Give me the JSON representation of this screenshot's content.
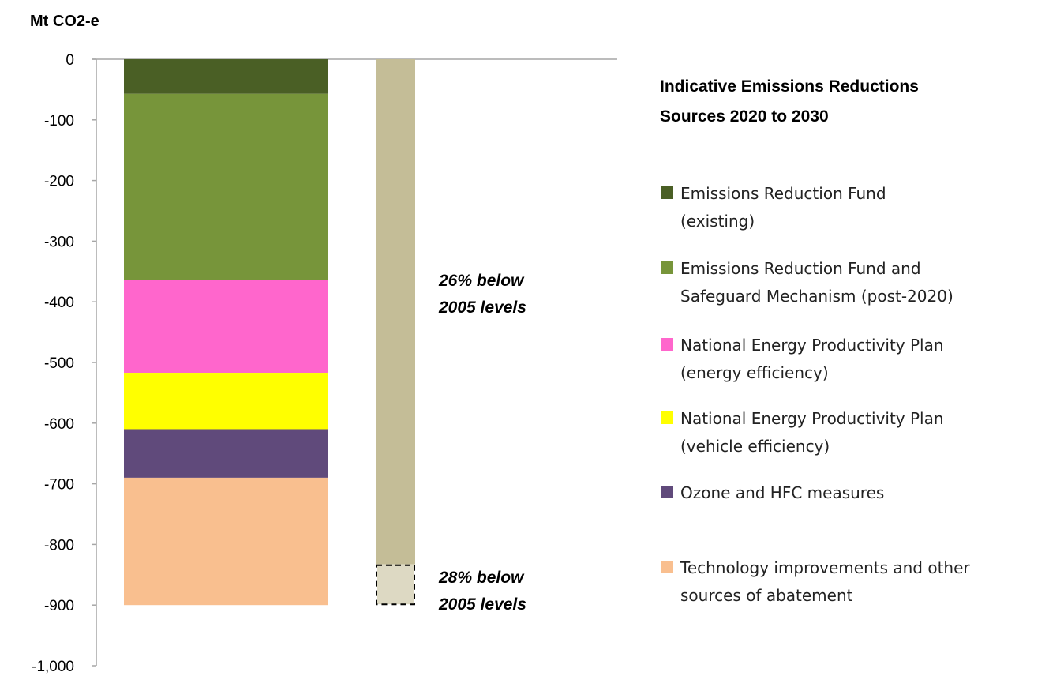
{
  "chart_data": {
    "type": "bar",
    "stacked": true,
    "ylabel": "Mt CO2-e",
    "ylim": [
      -1000,
      0
    ],
    "y_tick_labels": [
      "0",
      "-100",
      "-200",
      "-300",
      "-400",
      "-500",
      "-600",
      "-700",
      "-800",
      "-900",
      "-1,000"
    ],
    "y_ticks": [
      0,
      -100,
      -200,
      -300,
      -400,
      -500,
      -600,
      -700,
      -800,
      -900,
      -1000
    ],
    "grid": false,
    "legend_placement": "right",
    "legend_title": "Indicative Emissions Reductions Sources 2020 to 2030",
    "legend_title_lines": [
      "Indicative Emissions Reductions",
      "Sources 2020 to 2030"
    ],
    "series": [
      {
        "name": "Emissions Reduction Fund (existing)",
        "name_lines": [
          "Emissions Reduction Fund",
          "(existing)"
        ],
        "value": -57,
        "color": "#4a5f25"
      },
      {
        "name": "Emissions Reduction Fund and Safeguard Mechanism (post-2020)",
        "name_lines": [
          "Emissions Reduction Fund and",
          "Safeguard Mechanism (post-2020)"
        ],
        "value": -307,
        "color": "#77953a"
      },
      {
        "name": "National Energy Productivity Plan (energy efficiency)",
        "name_lines": [
          "National Energy Productivity Plan",
          "(energy efficiency)"
        ],
        "value": -153,
        "color": "#ff66cc"
      },
      {
        "name": "National Energy Productivity Plan (vehicle efficiency)",
        "name_lines": [
          "National Energy Productivity Plan",
          "(vehicle efficiency)"
        ],
        "value": -93,
        "color": "#ffff00"
      },
      {
        "name": "Ozone and HFC measures",
        "name_lines": [
          "Ozone and HFC measures"
        ],
        "value": -80,
        "color": "#604a7b"
      },
      {
        "name": "Technology improvements and other sources of abatement",
        "name_lines": [
          "Technology improvements and other",
          "sources of abatement"
        ],
        "value": -210,
        "color": "#f9bf8f"
      }
    ],
    "target_bar": {
      "value": -833,
      "color": "#c4bd97",
      "label": "26% below 2005 levels",
      "label_lines": [
        "26% below",
        "2005 levels"
      ],
      "extension": {
        "from": -833,
        "to": -900,
        "color": "#ddd9c3",
        "style": "dashed",
        "label": "28% below 2005 levels",
        "label_lines": [
          "28% below",
          "2005 levels"
        ]
      }
    }
  }
}
